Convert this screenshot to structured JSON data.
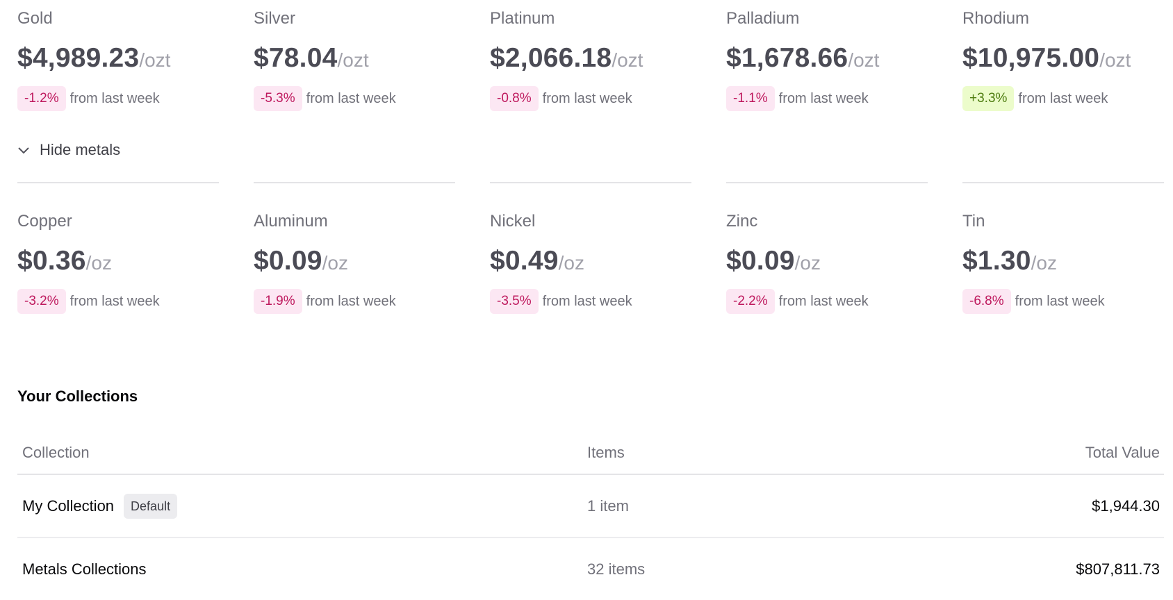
{
  "metals": {
    "row1": [
      {
        "name": "Gold",
        "price": "$4,989.23",
        "unit": "/ozt",
        "change": "-1.2%",
        "trend": "neg"
      },
      {
        "name": "Silver",
        "price": "$78.04",
        "unit": "/ozt",
        "change": "-5.3%",
        "trend": "neg"
      },
      {
        "name": "Platinum",
        "price": "$2,066.18",
        "unit": "/ozt",
        "change": "-0.8%",
        "trend": "neg"
      },
      {
        "name": "Palladium",
        "price": "$1,678.66",
        "unit": "/ozt",
        "change": "-1.1%",
        "trend": "neg"
      },
      {
        "name": "Rhodium",
        "price": "$10,975.00",
        "unit": "/ozt",
        "change": "+3.3%",
        "trend": "pos"
      }
    ],
    "row2": [
      {
        "name": "Copper",
        "price": "$0.36",
        "unit": "/oz",
        "change": "-3.2%",
        "trend": "neg"
      },
      {
        "name": "Aluminum",
        "price": "$0.09",
        "unit": "/oz",
        "change": "-1.9%",
        "trend": "neg"
      },
      {
        "name": "Nickel",
        "price": "$0.49",
        "unit": "/oz",
        "change": "-3.5%",
        "trend": "neg"
      },
      {
        "name": "Zinc",
        "price": "$0.09",
        "unit": "/oz",
        "change": "-2.2%",
        "trend": "neg"
      },
      {
        "name": "Tin",
        "price": "$1.30",
        "unit": "/oz",
        "change": "-6.8%",
        "trend": "neg"
      }
    ],
    "from_text": "from last week"
  },
  "toggle": {
    "label": "Hide metals",
    "icon": "chevron-down-icon"
  },
  "collections": {
    "title": "Your Collections",
    "headers": {
      "name": "Collection",
      "items": "Items",
      "value": "Total Value"
    },
    "rows": [
      {
        "name": "My Collection",
        "tag": "Default",
        "items": "1 item",
        "value": "$1,944.30"
      },
      {
        "name": "Metals Collections",
        "tag": "",
        "items": "32 items",
        "value": "$807,811.73"
      }
    ]
  },
  "colors": {
    "negative_badge_bg": "#fce7f3",
    "negative_badge_text": "#be185d",
    "positive_badge_bg": "#ecfccb",
    "positive_badge_text": "#4d7c0f"
  }
}
